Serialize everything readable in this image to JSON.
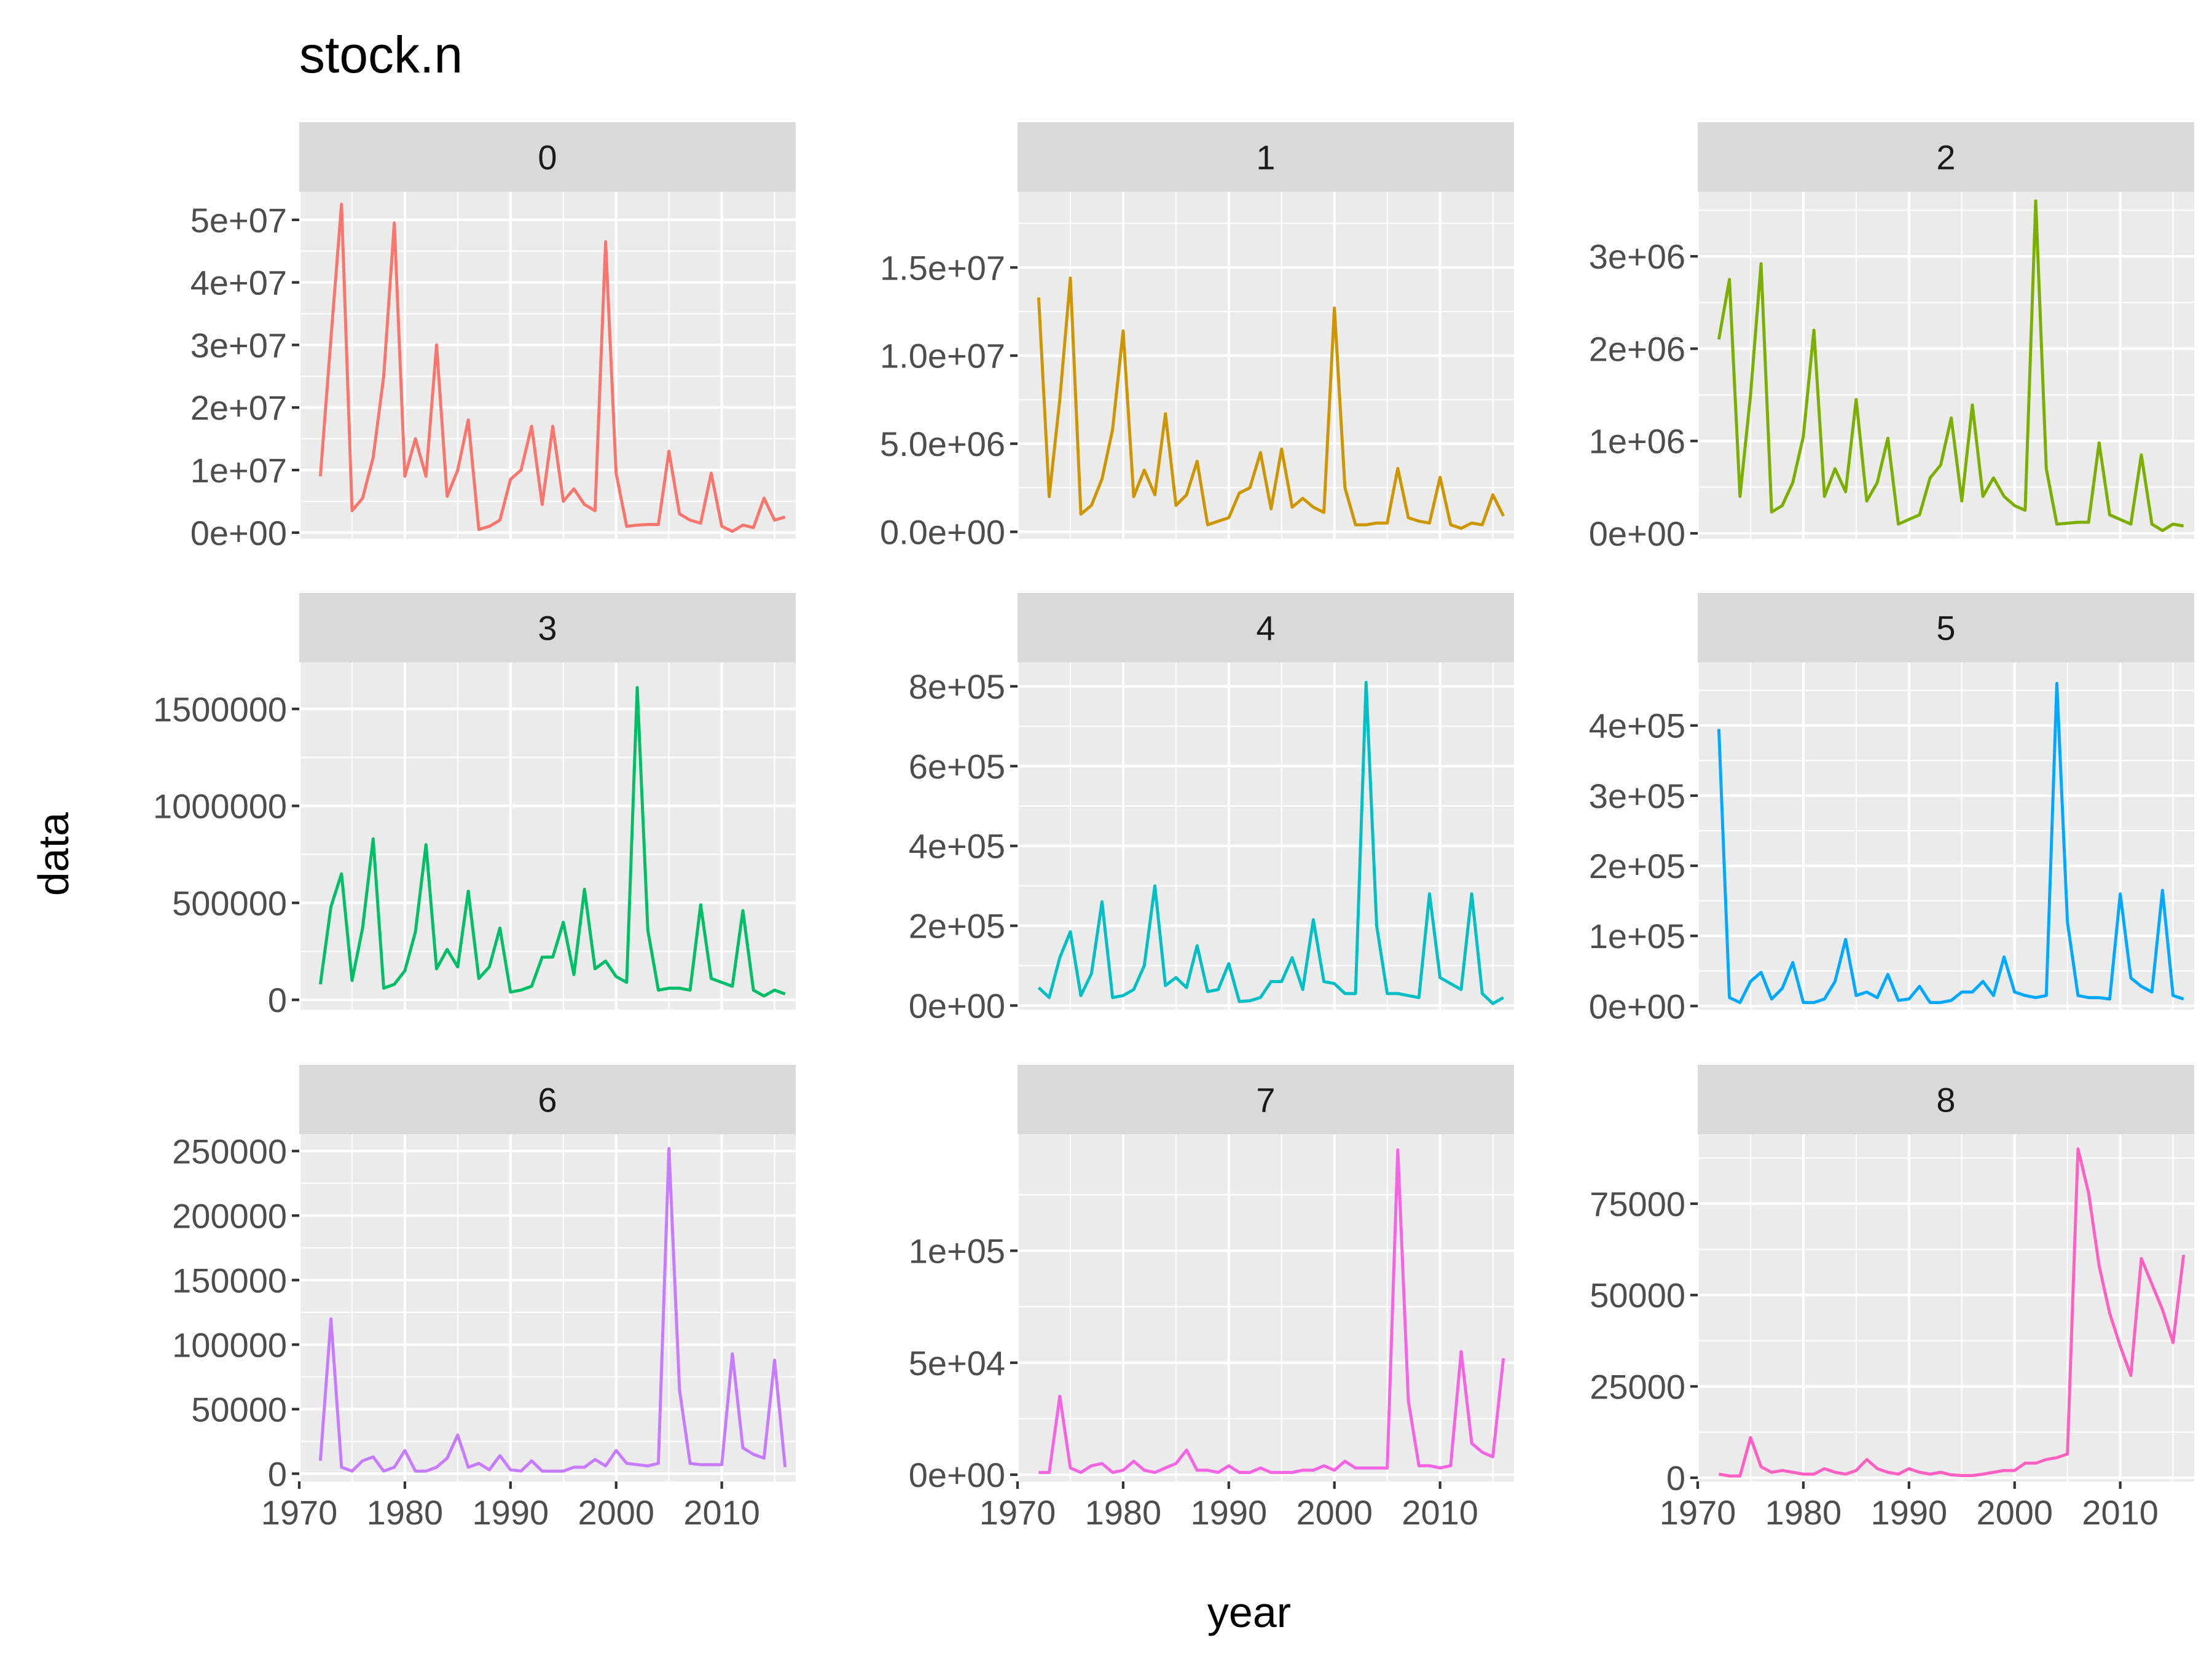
{
  "chart_data": {
    "type": "line",
    "title": "stock.n",
    "xlabel": "year",
    "ylabel": "data",
    "legend": "none",
    "grid": true,
    "x": [
      1972,
      1973,
      1974,
      1975,
      1976,
      1977,
      1978,
      1979,
      1980,
      1981,
      1982,
      1983,
      1984,
      1985,
      1986,
      1987,
      1988,
      1989,
      1990,
      1991,
      1992,
      1993,
      1994,
      1995,
      1996,
      1997,
      1998,
      1999,
      2000,
      2001,
      2002,
      2003,
      2004,
      2005,
      2006,
      2007,
      2008,
      2009,
      2010,
      2011,
      2012,
      2013,
      2014,
      2015,
      2016
    ],
    "xlim": [
      1970,
      2017
    ],
    "x_breaks": [
      1970,
      1980,
      1990,
      2000,
      2010
    ],
    "x_tick_labels": [
      "1970",
      "1980",
      "1990",
      "2000",
      "2010"
    ],
    "facets": [
      {
        "label": "0",
        "color": "#F8766D",
        "ylim": [
          -1000000,
          54500000
        ],
        "y_breaks": [
          0,
          10000000,
          20000000,
          30000000,
          40000000,
          50000000
        ],
        "y_tick_labels": [
          "0e+00",
          "1e+07",
          "2e+07",
          "3e+07",
          "4e+07",
          "5e+07"
        ],
        "values": [
          9000000,
          31000000,
          52500000,
          3500000,
          5500000,
          12000000,
          25000000,
          49500000,
          9000000,
          15000000,
          9000000,
          30000000,
          5800000,
          10000000,
          18000000,
          500000,
          1000000,
          2000000,
          8500000,
          10000000,
          17000000,
          4500000,
          17000000,
          5000000,
          7000000,
          4500000,
          3500000,
          46500000,
          9500000,
          1000000,
          1200000,
          1300000,
          1300000,
          13000000,
          3000000,
          2000000,
          1500000,
          9500000,
          1000000,
          200000,
          1200000,
          800000,
          5500000,
          2000000,
          2500000
        ]
      },
      {
        "label": "1",
        "color": "#CD9600",
        "ylim": [
          -400000,
          19300000
        ],
        "y_breaks": [
          0,
          5000000,
          10000000,
          15000000
        ],
        "y_tick_labels": [
          "0.0e+00",
          "5.0e+06",
          "1.0e+07",
          "1.5e+07"
        ],
        "values": [
          13300000,
          2000000,
          7500000,
          14400000,
          1000000,
          1500000,
          3000000,
          5800000,
          11400000,
          2000000,
          3500000,
          2100000,
          6700000,
          1500000,
          2100000,
          4000000,
          400000,
          600000,
          800000,
          2200000,
          2500000,
          4500000,
          1300000,
          4700000,
          1400000,
          1900000,
          1400000,
          1100000,
          12700000,
          2500000,
          400000,
          400000,
          500000,
          500000,
          3600000,
          800000,
          600000,
          500000,
          3100000,
          400000,
          200000,
          500000,
          400000,
          2100000,
          900000
        ]
      },
      {
        "label": "2",
        "color": "#7CAE00",
        "ylim": [
          -60000,
          3700000
        ],
        "y_breaks": [
          0,
          1000000,
          2000000,
          3000000
        ],
        "y_tick_labels": [
          "0e+00",
          "1e+06",
          "2e+06",
          "3e+06"
        ],
        "values": [
          2100000,
          2750000,
          400000,
          1500000,
          2920000,
          230000,
          300000,
          550000,
          1050000,
          2200000,
          400000,
          700000,
          450000,
          1450000,
          350000,
          550000,
          1030000,
          100000,
          150000,
          200000,
          600000,
          740000,
          1250000,
          350000,
          1390000,
          400000,
          600000,
          400000,
          300000,
          250000,
          3600000,
          700000,
          100000,
          110000,
          120000,
          120000,
          980000,
          200000,
          150000,
          100000,
          850000,
          100000,
          30000,
          100000,
          80000
        ]
      },
      {
        "label": "3",
        "color": "#00BE67",
        "ylim": [
          -50000,
          1740000
        ],
        "y_breaks": [
          0,
          500000,
          1000000,
          1500000
        ],
        "y_tick_labels": [
          "0",
          "500000",
          "1000000",
          "1500000"
        ],
        "values": [
          80000,
          480000,
          650000,
          100000,
          370000,
          830000,
          60000,
          80000,
          150000,
          350000,
          800000,
          160000,
          260000,
          170000,
          560000,
          110000,
          170000,
          370000,
          40000,
          50000,
          70000,
          220000,
          220000,
          400000,
          130000,
          570000,
          160000,
          200000,
          120000,
          90000,
          1610000,
          360000,
          50000,
          60000,
          60000,
          50000,
          490000,
          110000,
          90000,
          70000,
          460000,
          50000,
          20000,
          50000,
          30000
        ]
      },
      {
        "label": "4",
        "color": "#00BFC4",
        "ylim": [
          -10000,
          860000
        ],
        "y_breaks": [
          0,
          200000,
          400000,
          600000,
          800000
        ],
        "y_tick_labels": [
          "0e+00",
          "2e+05",
          "4e+05",
          "6e+05",
          "8e+05"
        ],
        "values": [
          45000,
          20000,
          120000,
          185000,
          25000,
          80000,
          260000,
          20000,
          25000,
          40000,
          100000,
          300000,
          50000,
          70000,
          45000,
          150000,
          35000,
          40000,
          105000,
          10000,
          12000,
          20000,
          60000,
          60000,
          120000,
          40000,
          215000,
          60000,
          55000,
          30000,
          30000,
          810000,
          200000,
          30000,
          30000,
          25000,
          20000,
          280000,
          70000,
          55000,
          40000,
          280000,
          30000,
          5000,
          20000
        ]
      },
      {
        "label": "5",
        "color": "#00A9FF",
        "ylim": [
          -5000,
          490000
        ],
        "y_breaks": [
          0,
          100000,
          200000,
          300000,
          400000
        ],
        "y_tick_labels": [
          "0e+00",
          "1e+05",
          "2e+05",
          "3e+05",
          "4e+05"
        ],
        "values": [
          395000,
          12000,
          5000,
          35000,
          48000,
          10000,
          25000,
          62000,
          5000,
          5000,
          10000,
          35000,
          95000,
          15000,
          20000,
          12000,
          45000,
          8000,
          10000,
          28000,
          5000,
          5000,
          8000,
          20000,
          20000,
          35000,
          15000,
          70000,
          20000,
          15000,
          12000,
          15000,
          460000,
          120000,
          15000,
          12000,
          12000,
          10000,
          160000,
          40000,
          28000,
          20000,
          165000,
          15000,
          10000
        ]
      },
      {
        "label": "6",
        "color": "#C77CFF",
        "ylim": [
          -6000,
          263000
        ],
        "y_breaks": [
          0,
          50000,
          100000,
          150000,
          200000,
          250000
        ],
        "y_tick_labels": [
          "0",
          "50000",
          "100000",
          "150000",
          "200000",
          "250000"
        ],
        "values": [
          10000,
          120000,
          5000,
          2000,
          10000,
          13000,
          2000,
          5000,
          18000,
          2000,
          2000,
          5000,
          12000,
          30000,
          5000,
          8000,
          3000,
          14000,
          3000,
          2000,
          10000,
          2000,
          2000,
          2000,
          5000,
          5000,
          11000,
          6000,
          18000,
          8000,
          7000,
          6000,
          8000,
          252000,
          65000,
          8000,
          7000,
          7000,
          7000,
          93000,
          20000,
          15000,
          12000,
          88000,
          5000
        ]
      },
      {
        "label": "7",
        "color": "#F564E3",
        "ylim": [
          -3000,
          152000
        ],
        "y_breaks": [
          0,
          50000,
          100000
        ],
        "y_tick_labels": [
          "0e+00",
          "5e+04",
          "1e+05"
        ],
        "values": [
          1000,
          1000,
          35000,
          3000,
          1000,
          4000,
          5000,
          1000,
          2000,
          6000,
          2000,
          1000,
          3000,
          5000,
          11000,
          2000,
          2000,
          1000,
          4000,
          1000,
          1000,
          3000,
          1000,
          1000,
          1000,
          2000,
          2000,
          4000,
          2000,
          6000,
          3000,
          3000,
          3000,
          3000,
          145000,
          33000,
          4000,
          4000,
          3000,
          4000,
          55000,
          14000,
          10000,
          8000,
          52000
        ]
      },
      {
        "label": "8",
        "color": "#FF61C3",
        "ylim": [
          -1000,
          94000
        ],
        "y_breaks": [
          0,
          25000,
          50000,
          75000
        ],
        "y_tick_labels": [
          "0",
          "25000",
          "50000",
          "75000"
        ],
        "values": [
          1000,
          500,
          500,
          11000,
          3000,
          1500,
          2000,
          1500,
          1000,
          1000,
          2500,
          1500,
          1000,
          2000,
          5000,
          2500,
          1500,
          1000,
          2500,
          1500,
          1000,
          1500,
          800,
          600,
          600,
          1000,
          1500,
          2000,
          2000,
          4000,
          4000,
          5000,
          5500,
          6500,
          90000,
          78000,
          58000,
          45000,
          36000,
          28000,
          60000,
          53000,
          46000,
          37000,
          61000
        ]
      }
    ]
  }
}
